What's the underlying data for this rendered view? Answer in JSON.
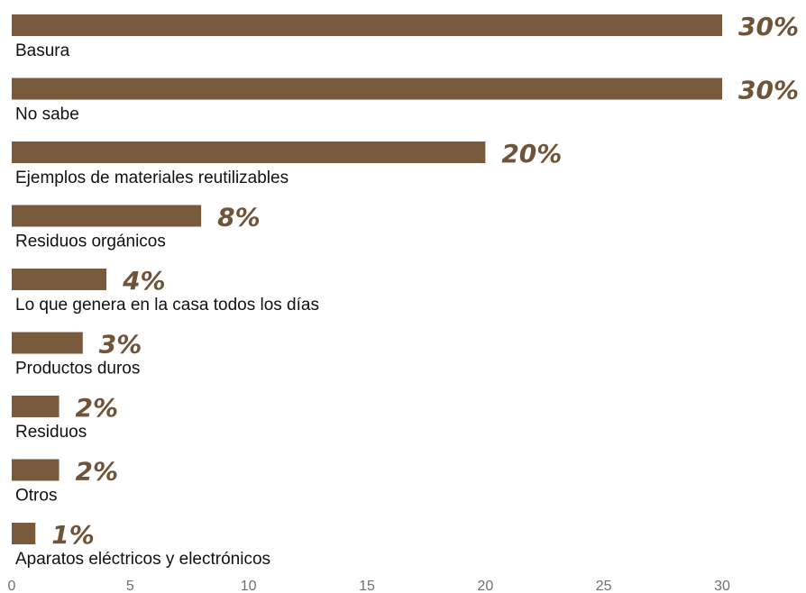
{
  "chart_data": {
    "type": "bar",
    "orientation": "horizontal",
    "categories": [
      "Basura",
      "No   sabe",
      "Ejemplos de materiales reutilizables",
      "Residuos orgánicos",
      "Lo que genera en la casa todos los días",
      "Productos duros",
      "Residuos",
      "Otros",
      "Aparatos eléctricos y electrónicos"
    ],
    "values": [
      30,
      30,
      20,
      8,
      4,
      3,
      2,
      2,
      1
    ],
    "data_labels": [
      "30%",
      "30%",
      "20%",
      "8%",
      "4%",
      "3%",
      "2%",
      "2%",
      "1%"
    ],
    "xlim": [
      0,
      30
    ],
    "xticks": [
      "0",
      "5",
      "10",
      "15",
      "20",
      "25",
      "30"
    ],
    "title": "",
    "xlabel": "",
    "ylabel": "",
    "grid": false,
    "bar_color": "#7a5a3c",
    "label_color": "#6f5439"
  }
}
